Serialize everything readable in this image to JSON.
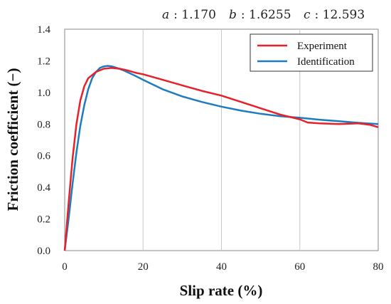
{
  "parameters": {
    "a_label": "a",
    "a_value": ": 1.170",
    "b_label": "b",
    "b_value": ": 1.6255",
    "c_label": "c",
    "c_value": ": 12.593"
  },
  "chart_data": {
    "type": "line",
    "xlabel": "Slip rate (%)",
    "ylabel": "Friction coefficient (−)",
    "xlim": [
      0,
      80
    ],
    "ylim": [
      0,
      1.4
    ],
    "xticks": [
      "0",
      "20",
      "40",
      "60",
      "80"
    ],
    "yticks": [
      "0.0",
      "0.2",
      "0.4",
      "0.6",
      "0.8",
      "1.0",
      "1.2",
      "1.4"
    ],
    "grid": "vertical",
    "legend_position": "top-right",
    "series": [
      {
        "name": "Experiment",
        "color": "#e8202a",
        "points": [
          [
            0,
            0
          ],
          [
            1,
            0.3
          ],
          [
            2,
            0.58
          ],
          [
            3,
            0.8
          ],
          [
            4,
            0.95
          ],
          [
            5,
            1.04
          ],
          [
            6,
            1.09
          ],
          [
            8,
            1.13
          ],
          [
            10,
            1.15
          ],
          [
            12,
            1.155
          ],
          [
            14,
            1.15
          ],
          [
            16,
            1.14
          ],
          [
            18,
            1.125
          ],
          [
            20,
            1.115
          ],
          [
            25,
            1.08
          ],
          [
            30,
            1.045
          ],
          [
            35,
            1.01
          ],
          [
            40,
            0.98
          ],
          [
            45,
            0.94
          ],
          [
            50,
            0.9
          ],
          [
            55,
            0.86
          ],
          [
            60,
            0.83
          ],
          [
            62,
            0.81
          ],
          [
            65,
            0.805
          ],
          [
            70,
            0.8
          ],
          [
            75,
            0.805
          ],
          [
            78,
            0.795
          ],
          [
            80,
            0.78
          ]
        ]
      },
      {
        "name": "Identification",
        "color": "#1f7bbf",
        "points": [
          [
            0,
            0
          ],
          [
            1,
            0.2
          ],
          [
            2,
            0.42
          ],
          [
            3,
            0.62
          ],
          [
            4,
            0.79
          ],
          [
            5,
            0.92
          ],
          [
            6,
            1.02
          ],
          [
            7,
            1.09
          ],
          [
            8,
            1.13
          ],
          [
            9,
            1.155
          ],
          [
            10,
            1.165
          ],
          [
            11,
            1.168
          ],
          [
            12,
            1.165
          ],
          [
            13,
            1.158
          ],
          [
            15,
            1.14
          ],
          [
            18,
            1.105
          ],
          [
            20,
            1.08
          ],
          [
            25,
            1.02
          ],
          [
            30,
            0.975
          ],
          [
            35,
            0.94
          ],
          [
            40,
            0.91
          ],
          [
            45,
            0.885
          ],
          [
            50,
            0.865
          ],
          [
            55,
            0.85
          ],
          [
            60,
            0.84
          ],
          [
            65,
            0.828
          ],
          [
            70,
            0.818
          ],
          [
            75,
            0.808
          ],
          [
            80,
            0.8
          ]
        ]
      }
    ]
  }
}
